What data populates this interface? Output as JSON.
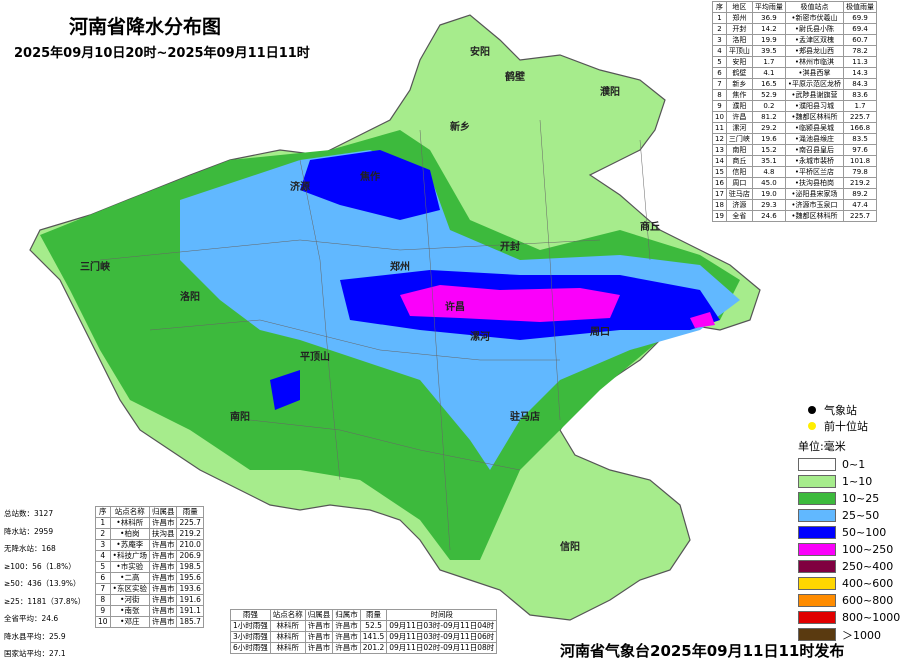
{
  "header": {
    "title": "河南省降水分布图",
    "subtitle": "2025年09月10日20时~2025年09月11日11时"
  },
  "city_table": {
    "headers": [
      "序",
      "地区",
      "平均雨量",
      "极值站点",
      "极值雨量"
    ],
    "rows": [
      [
        "1",
        "郑州",
        "36.9",
        "•新密市伏羲山",
        "69.9"
      ],
      [
        "2",
        "开封",
        "14.2",
        "•尉氏县小陈",
        "69.4"
      ],
      [
        "3",
        "洛阳",
        "19.9",
        "•孟津区双槐",
        "60.7"
      ],
      [
        "4",
        "平顶山",
        "39.5",
        "•郏县龙山西",
        "78.2"
      ],
      [
        "5",
        "安阳",
        "1.7",
        "•林州市临淇",
        "11.3"
      ],
      [
        "6",
        "鹤壁",
        "4.1",
        "•淇县西掌",
        "14.3"
      ],
      [
        "7",
        "新乡",
        "16.5",
        "•平原示范区龙桥",
        "84.3"
      ],
      [
        "8",
        "焦作",
        "52.9",
        "•武陟县谢旗营",
        "83.6"
      ],
      [
        "9",
        "濮阳",
        "0.2",
        "•濮阳县习城",
        "1.7"
      ],
      [
        "10",
        "许昌",
        "81.2",
        "•魏都区林科所",
        "225.7"
      ],
      [
        "11",
        "漯河",
        "29.2",
        "•临颍县吴城",
        "166.8"
      ],
      [
        "12",
        "三门峡",
        "19.6",
        "•渑池县缑庄",
        "83.5"
      ],
      [
        "13",
        "南阳",
        "15.2",
        "•南召县皇后",
        "97.6"
      ],
      [
        "14",
        "商丘",
        "35.1",
        "•永城市裴桥",
        "101.8"
      ],
      [
        "15",
        "信阳",
        "4.8",
        "•平桥区兰店",
        "79.8"
      ],
      [
        "16",
        "周口",
        "45.0",
        "•扶沟县柏岗",
        "219.2"
      ],
      [
        "17",
        "驻马店",
        "19.0",
        "•泌阳县宋家场",
        "89.2"
      ],
      [
        "18",
        "济源",
        "29.3",
        "•济源市玉泉口",
        "47.4"
      ],
      [
        "19",
        "全省",
        "24.6",
        "•魏都区林科所",
        "225.7"
      ]
    ]
  },
  "stats": [
    "总站数：3127",
    "降水站：2959",
    "无降水站：168",
    "≥100：56（1.8%）",
    "≥50：436（13.9%）",
    "≥25：1181（37.8%）",
    "全省平均：24.6",
    "降水县平均：25.9",
    "国家站平均：27.1"
  ],
  "top_stations": {
    "headers": [
      "序",
      "站点名称",
      "归属县",
      "雨量"
    ],
    "rows": [
      [
        "1",
        "•林科所",
        "许昌市",
        "225.7"
      ],
      [
        "2",
        "•柏岗",
        "扶沟县",
        "219.2"
      ],
      [
        "3",
        "•苏庵李",
        "许昌市",
        "210.0"
      ],
      [
        "4",
        "•科技广场",
        "许昌市",
        "206.9"
      ],
      [
        "5",
        "•市实验",
        "许昌市",
        "198.5"
      ],
      [
        "6",
        "•二高",
        "许昌市",
        "195.6"
      ],
      [
        "7",
        "•东区实验",
        "许昌市",
        "193.6"
      ],
      [
        "8",
        "•河街",
        "许昌市",
        "191.6"
      ],
      [
        "9",
        "•南张",
        "许昌市",
        "191.1"
      ],
      [
        "10",
        "•邓庄",
        "许昌市",
        "185.7"
      ]
    ]
  },
  "hourly": {
    "headers": [
      "雨强",
      "站点名称",
      "归属县",
      "归属市",
      "雨量",
      "时间段"
    ],
    "rows": [
      [
        "1小时雨强",
        "林科所",
        "许昌市",
        "许昌市",
        "52.5",
        "09月11日03时-09月11日04时"
      ],
      [
        "3小时雨强",
        "林科所",
        "许昌市",
        "许昌市",
        "141.5",
        "09月11日03时-09月11日06时"
      ],
      [
        "6小时雨强",
        "林科所",
        "许昌市",
        "许昌市",
        "201.2",
        "09月11日02时-09月11日08时"
      ]
    ]
  },
  "map_labels": [
    "安阳",
    "鹤壁",
    "濮阳",
    "新乡",
    "焦作",
    "济源",
    "郑州",
    "开封",
    "商丘",
    "洛阳",
    "三门峡",
    "许昌",
    "平顶山",
    "漯河",
    "周口",
    "南阳",
    "驻马店",
    "信阳"
  ],
  "legend": {
    "markers": [
      {
        "label": "气象站",
        "color": "#000000"
      },
      {
        "label": "前十位站",
        "color": "#ffee00"
      }
    ],
    "unit": "单位:毫米",
    "bins": [
      {
        "label": "0~1",
        "color": "#ffffff"
      },
      {
        "label": "1~10",
        "color": "#a6ec8c"
      },
      {
        "label": "10~25",
        "color": "#3dba3d"
      },
      {
        "label": "25~50",
        "color": "#61b8ff"
      },
      {
        "label": "50~100",
        "color": "#0000ff"
      },
      {
        "label": "100~250",
        "color": "#fa00fa"
      },
      {
        "label": "250~400",
        "color": "#800040"
      },
      {
        "label": "400~600",
        "color": "#ffd700"
      },
      {
        "label": "600~800",
        "color": "#ff8c00"
      },
      {
        "label": "800~1000",
        "color": "#e00000"
      },
      {
        "label": "＞1000",
        "color": "#5a3a10"
      }
    ]
  },
  "footer": "河南省气象台2025年09月11日11时发布"
}
